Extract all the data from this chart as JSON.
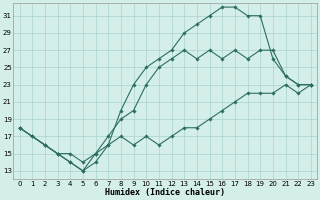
{
  "xlabel": "Humidex (Indice chaleur)",
  "bg_color": "#d4eeea",
  "grid_color": "#b0d8d0",
  "line_color": "#2d6e62",
  "xlim": [
    -0.5,
    23.5
  ],
  "ylim": [
    12,
    32.5
  ],
  "yticks": [
    13,
    15,
    17,
    19,
    21,
    23,
    25,
    27,
    29,
    31
  ],
  "xticks": [
    0,
    1,
    2,
    3,
    4,
    5,
    6,
    7,
    8,
    9,
    10,
    11,
    12,
    13,
    14,
    15,
    16,
    17,
    18,
    19,
    20,
    21,
    22,
    23
  ],
  "line_wavy_x": [
    0,
    1,
    2,
    3,
    4,
    5,
    6,
    7,
    8,
    9,
    10,
    11,
    12,
    13,
    14,
    15,
    16,
    17,
    18,
    19,
    20,
    21,
    22,
    23
  ],
  "line_wavy_y": [
    18,
    17,
    16,
    15,
    14,
    13,
    14,
    16,
    17,
    16,
    17,
    16,
    17,
    18,
    18,
    19,
    20,
    21,
    22,
    22,
    22,
    23,
    22,
    23
  ],
  "line_mid_x": [
    0,
    1,
    2,
    3,
    4,
    5,
    6,
    7,
    8,
    9,
    10,
    11,
    12,
    13,
    14,
    15,
    16,
    17,
    18,
    19,
    20,
    21,
    22,
    23
  ],
  "line_mid_y": [
    18,
    17,
    16,
    15,
    14,
    13,
    15,
    16,
    20,
    23,
    25,
    26,
    27,
    29,
    30,
    31,
    32,
    32,
    31,
    31,
    26,
    24,
    23,
    23
  ],
  "line_top_x": [
    0,
    2,
    3,
    4,
    5,
    6,
    7,
    8,
    9,
    10,
    11,
    12,
    13,
    14,
    15,
    16,
    17,
    18,
    19,
    20,
    21,
    22,
    23
  ],
  "line_top_y": [
    18,
    16,
    15,
    15,
    14,
    15,
    17,
    19,
    20,
    23,
    25,
    26,
    27,
    26,
    27,
    26,
    27,
    26,
    27,
    27,
    24,
    23,
    23
  ]
}
